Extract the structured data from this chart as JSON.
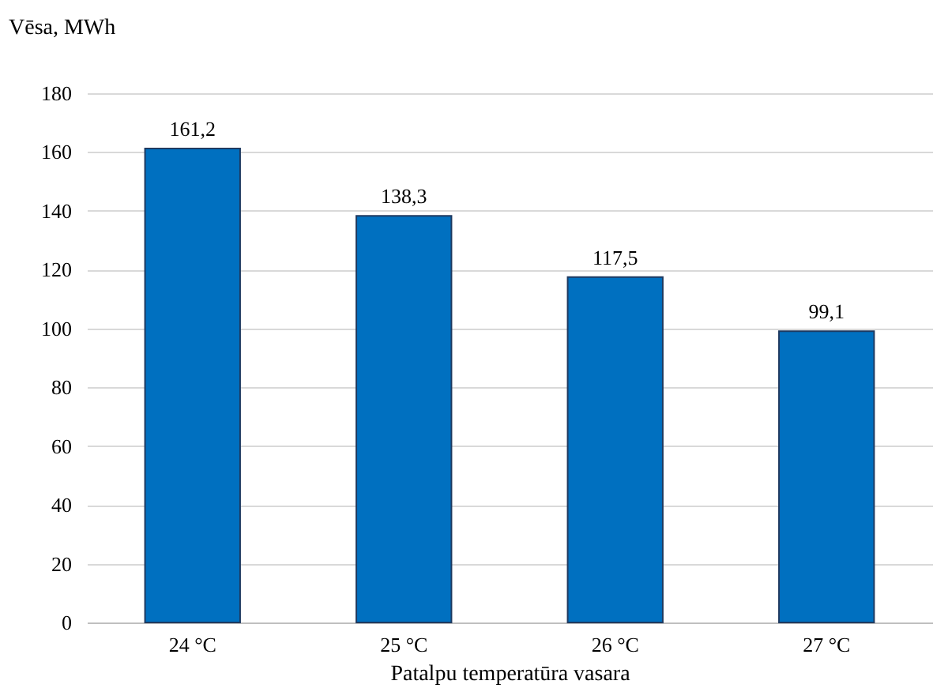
{
  "chart_data": {
    "type": "bar",
    "categories": [
      "24 °C",
      "25 °C",
      "26 °C",
      "27 °C"
    ],
    "values": [
      161.2,
      138.3,
      117.5,
      99.1
    ],
    "value_labels": [
      "161,2",
      "138,3",
      "117,5",
      "99,1"
    ],
    "color": "#0070c0",
    "ylabel": "Vēsa, MWh",
    "xlabel": "Patalpu temperatūra vasara",
    "ylim": [
      0,
      180
    ],
    "yticks": [
      0,
      20,
      40,
      60,
      80,
      100,
      120,
      140,
      160,
      180
    ],
    "grid": "y"
  }
}
